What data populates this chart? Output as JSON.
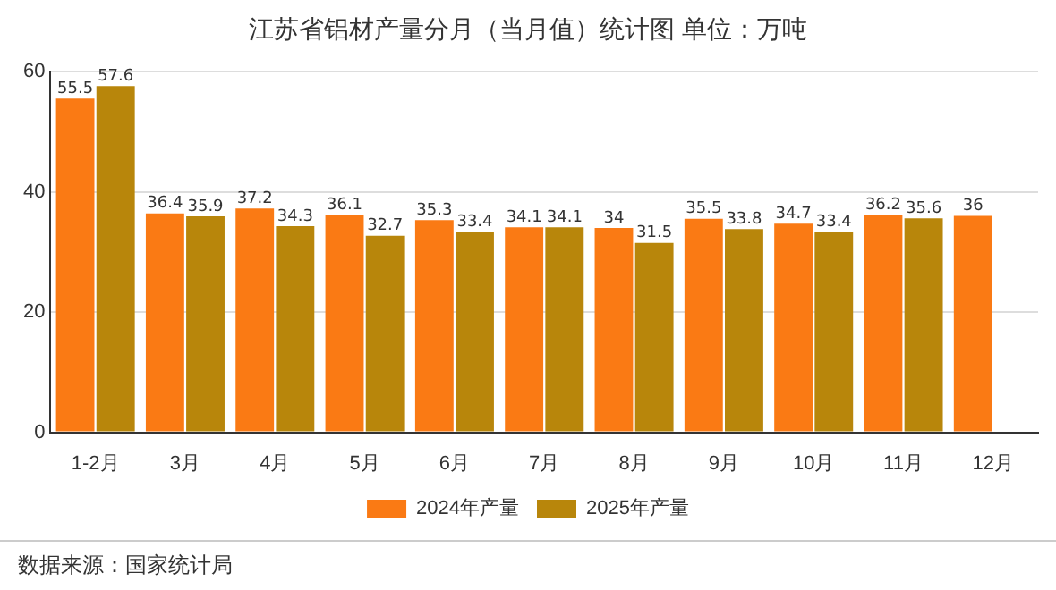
{
  "chart_data": {
    "type": "bar",
    "title": "江苏省铝材产量分月（当月值）统计图 单位：万吨",
    "categories": [
      "1-2月",
      "3月",
      "4月",
      "5月",
      "6月",
      "7月",
      "8月",
      "9月",
      "10月",
      "11月",
      "12月"
    ],
    "series": [
      {
        "name": "2024年产量",
        "color": "#fa7a14",
        "values": [
          55.5,
          36.4,
          37.2,
          36.1,
          35.3,
          34.1,
          34,
          35.5,
          34.7,
          36.2,
          36
        ]
      },
      {
        "name": "2025年产量",
        "color": "#b8860b",
        "values": [
          57.6,
          35.9,
          34.3,
          32.7,
          33.4,
          34.1,
          31.5,
          33.8,
          33.4,
          35.6,
          null
        ]
      }
    ],
    "ylim": [
      0,
      60
    ],
    "yticks": [
      0,
      20,
      40,
      60
    ],
    "grid": "y",
    "legend": "bottom",
    "data_labels": true,
    "annotations": [
      "数据来源：国家统计局"
    ]
  }
}
